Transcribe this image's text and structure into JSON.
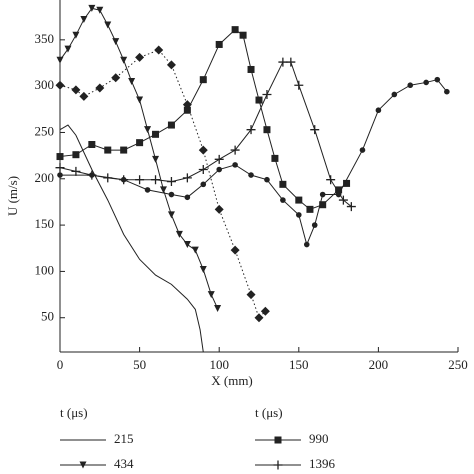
{
  "chart_data": {
    "type": "line",
    "xlabel": "X (mm)",
    "ylabel": "U (m/s)",
    "xlim": [
      0,
      250
    ],
    "ylim": [
      13,
      393
    ],
    "xticks": [
      0,
      50,
      100,
      150,
      200,
      250
    ],
    "yticks": [
      50,
      100,
      150,
      200,
      250,
      300,
      350
    ],
    "legend_titles": [
      "t (μs)",
      "t (μs)"
    ],
    "series": [
      {
        "name": "215",
        "color": "#222",
        "marker": "none",
        "line_style": "solid",
        "x": [
          0,
          5,
          10,
          20,
          30,
          40,
          50,
          60,
          70,
          80,
          85,
          88,
          90
        ],
        "values": [
          253,
          258,
          247,
          210,
          177,
          140,
          113,
          96,
          86,
          70,
          59,
          37,
          13
        ]
      },
      {
        "name": "434",
        "color": "#222",
        "marker": "triangle-down",
        "line_style": "solid",
        "x": [
          0,
          5,
          10,
          15,
          20,
          25,
          30,
          35,
          40,
          45,
          50,
          55,
          60,
          65,
          70,
          75,
          80,
          85,
          90,
          95,
          99
        ],
        "values": [
          328,
          340,
          355,
          372,
          384,
          382,
          366,
          348,
          328,
          305,
          285,
          253,
          221,
          188,
          161,
          140,
          129,
          123,
          102,
          75,
          60
        ]
      },
      {
        "color": "#222",
        "marker": "diamond",
        "line_style": "dotted",
        "x": [
          0,
          10,
          15,
          25,
          35,
          50,
          62,
          70,
          80,
          90,
          100,
          110,
          120,
          125,
          129
        ],
        "values": [
          301,
          296,
          289,
          298,
          309,
          331,
          339,
          323,
          280,
          231,
          167,
          123,
          75,
          50,
          57
        ]
      },
      {
        "name": "990",
        "color": "#222",
        "marker": "square",
        "line_style": "solid",
        "x": [
          0,
          10,
          20,
          30,
          40,
          50,
          60,
          70,
          80,
          90,
          100,
          110,
          115,
          120,
          125,
          130,
          135,
          140,
          150,
          157,
          165,
          175,
          180
        ],
        "values": [
          224,
          226,
          237,
          231,
          231,
          239,
          248,
          258,
          274,
          307,
          345,
          361,
          355,
          318,
          285,
          253,
          222,
          194,
          177,
          167,
          172,
          188,
          195
        ]
      },
      {
        "name": "1396",
        "color": "#222",
        "marker": "plus",
        "line_style": "solid",
        "x": [
          0,
          10,
          20,
          30,
          40,
          50,
          60,
          70,
          80,
          90,
          100,
          110,
          120,
          130,
          140,
          145,
          150,
          160,
          170,
          178,
          183
        ],
        "values": [
          212,
          208,
          204,
          201,
          199,
          199,
          199,
          197,
          201,
          210,
          221,
          231,
          253,
          291,
          326,
          326,
          301,
          253,
          199,
          177,
          170
        ]
      },
      {
        "color": "#222",
        "marker": "circle",
        "line_style": "solid",
        "x": [
          0,
          20,
          40,
          55,
          70,
          80,
          90,
          100,
          110,
          120,
          130,
          140,
          150,
          155,
          160,
          165,
          175,
          190,
          200,
          210,
          220,
          230,
          237,
          243
        ],
        "values": [
          204,
          204,
          199,
          188,
          183,
          180,
          194,
          210,
          215,
          204,
          199,
          177,
          161,
          129,
          150,
          183,
          183,
          231,
          274,
          291,
          301,
          304,
          307,
          294
        ]
      }
    ]
  }
}
